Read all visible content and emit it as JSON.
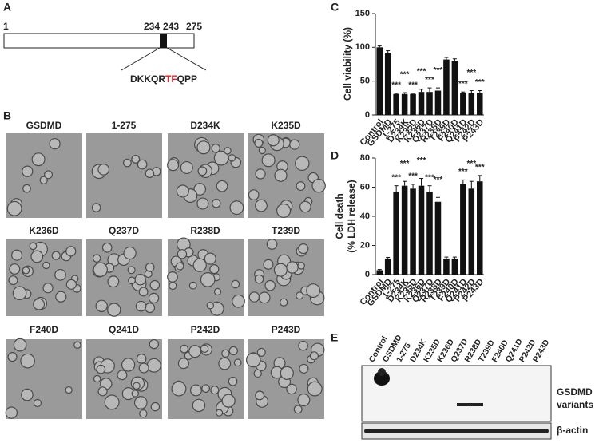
{
  "panels": {
    "a": {
      "label": "A",
      "start": "1",
      "marks": [
        "234",
        "243",
        "275"
      ],
      "sequence_pre": "DKKQR",
      "sequence_highlight": "TF",
      "sequence_post": "QPP"
    },
    "b": {
      "label": "B",
      "images": [
        "GSDMD",
        "1-275",
        "D234K",
        "K235D",
        "K236D",
        "Q237D",
        "R238D",
        "T239D",
        "F240D",
        "Q241D",
        "P242D",
        "P243D"
      ]
    },
    "e": {
      "label": "E",
      "band_label_1": "GSDMD",
      "band_label_2": "variants",
      "loading_label": "β-actin"
    }
  },
  "chart_data": [
    {
      "type": "bar",
      "panel": "C",
      "y_label": "Cell viability (%)",
      "categories": [
        "Control",
        "GSDMD",
        "1-275",
        "D234K",
        "K235D",
        "K236D",
        "Q237D",
        "R238D",
        "T239D",
        "F240D",
        "Q241D",
        "P242D",
        "P243D"
      ],
      "values": [
        100,
        92,
        31,
        31,
        31,
        34,
        34,
        36,
        82,
        80,
        33,
        32,
        33
      ],
      "errors": [
        2,
        3,
        1,
        2,
        1,
        4,
        6,
        4,
        3,
        3,
        1,
        4,
        3
      ],
      "significance": [
        null,
        null,
        "***",
        "***",
        "***",
        "***",
        "***",
        "***",
        null,
        null,
        "***",
        "***",
        "***"
      ],
      "color": "#111111",
      "ylim": [
        0,
        150
      ],
      "yticks": [
        0,
        50,
        100,
        150
      ]
    },
    {
      "type": "bar",
      "panel": "D",
      "y_label_1": "Cell death",
      "y_label_2": "(% LDH release)",
      "categories": [
        "Control",
        "GSDMD",
        "1-275",
        "D234K",
        "K235D",
        "K236D",
        "Q237D",
        "R238D",
        "T239D",
        "F240D",
        "Q241D",
        "P242D",
        "P243D"
      ],
      "values": [
        3,
        11,
        57,
        61,
        59,
        61,
        57,
        50,
        11,
        11,
        62,
        59,
        64
      ],
      "errors": [
        0.5,
        0.8,
        4,
        3,
        3,
        5,
        4,
        3,
        1,
        1,
        3,
        5,
        4
      ],
      "significance": [
        null,
        null,
        "***",
        "***",
        "***",
        "***",
        "***",
        "***",
        null,
        null,
        "***",
        "***",
        "***"
      ],
      "color": "#111111",
      "ylim": [
        0,
        80
      ],
      "yticks": [
        0,
        20,
        40,
        60,
        80
      ]
    }
  ]
}
